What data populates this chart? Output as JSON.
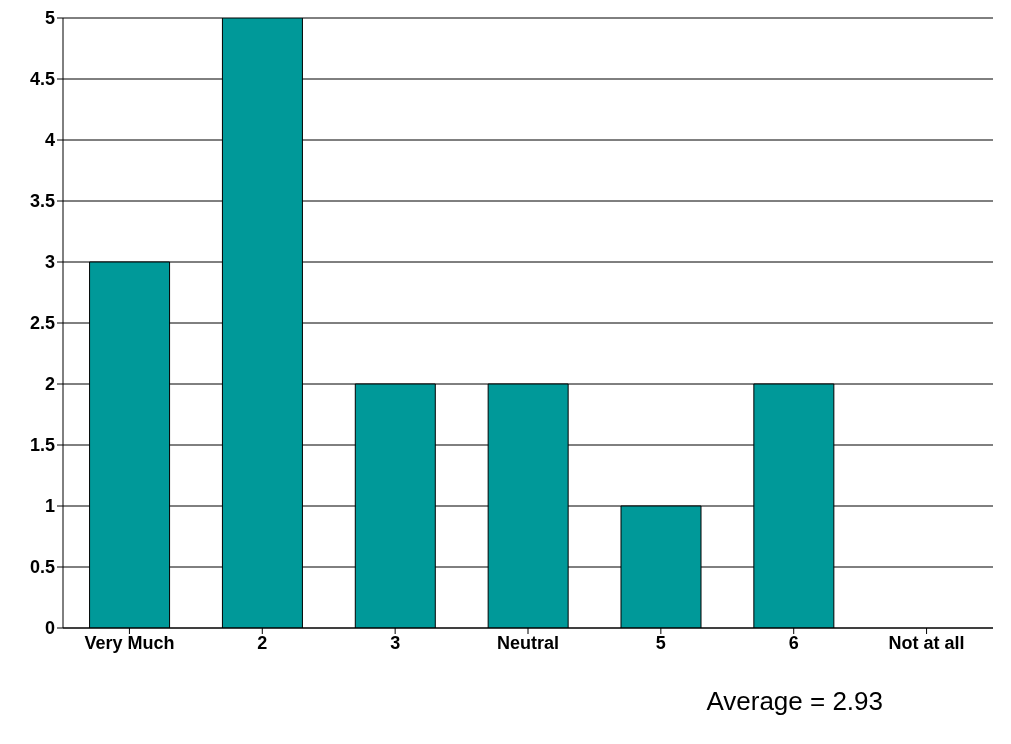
{
  "chart_data": {
    "type": "bar",
    "categories": [
      "Very Much",
      "2",
      "3",
      "Neutral",
      "5",
      "6",
      "Not at all"
    ],
    "values": [
      3,
      5,
      2,
      2,
      1,
      2,
      0
    ],
    "color": "#009999",
    "ylim": [
      0,
      5
    ],
    "yticks": [
      0,
      0.5,
      1,
      1.5,
      2,
      2.5,
      3,
      3.5,
      4,
      4.5,
      5
    ],
    "grid": "y",
    "annotations": [
      "Average = 2.93"
    ]
  }
}
